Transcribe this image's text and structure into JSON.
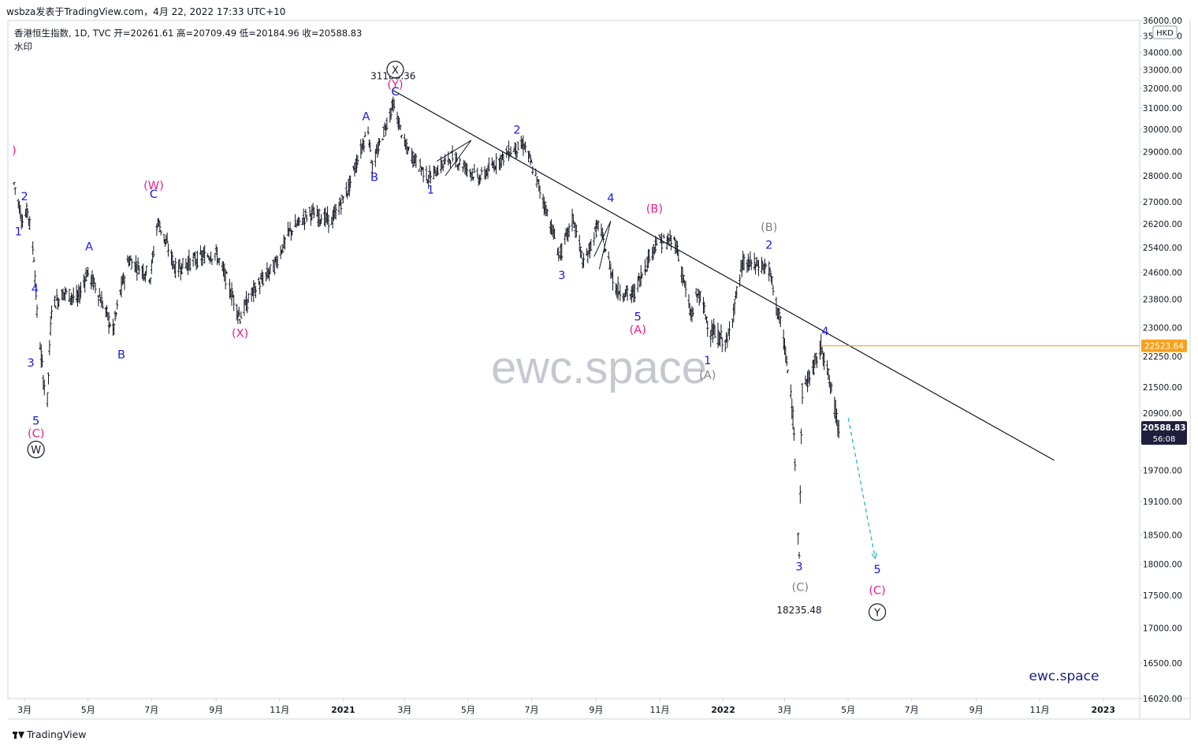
{
  "header": {
    "published": "wsbza发表于TradingView.com，4月 22, 2022 17:33 UTC+10",
    "legend": "香港恒生指数, 1D, TVC  开=20261.61  高=20709.49  低=20184.96  收=20588.83",
    "watermark_label": "水印",
    "currency": "HKD"
  },
  "footer": {
    "brand": "TradingView"
  },
  "chart_data": {
    "type": "candlestick",
    "symbol": "香港恒生指数",
    "interval": "1D",
    "ohlc": {
      "open": 20261.61,
      "high": 20709.49,
      "low": 20184.96,
      "close": 20588.83
    },
    "price_axis": {
      "ticks": [
        "16020.00",
        "16500.00",
        "17000.00",
        "17500.00",
        "18000.00",
        "18500.00",
        "19100.00",
        "19700.00",
        "20300.00",
        "20900.00",
        "21500.00",
        "22250.00",
        "23000.00",
        "23800.00",
        "24600.00",
        "25400.00",
        "26200.00",
        "27000.00",
        "28000.00",
        "29000.00",
        "30000.00",
        "31000.00",
        "32000.00",
        "33000.00",
        "34000.00",
        "35000.00",
        "36000.00"
      ]
    },
    "time_axis": [
      "3月",
      "5月",
      "7月",
      "9月",
      "11月",
      "2021",
      "3月",
      "5月",
      "7月",
      "9月",
      "11月",
      "2022",
      "3月",
      "5月",
      "7月",
      "9月",
      "11月",
      "2023"
    ],
    "price_series": [
      [
        "2020-02-20",
        27700
      ],
      [
        "2020-02-28",
        26300
      ],
      [
        "2020-03-04",
        26700
      ],
      [
        "2020-03-10",
        25100
      ],
      [
        "2020-03-13",
        23400
      ],
      [
        "2020-03-19",
        21700
      ],
      [
        "2020-03-23",
        21200
      ],
      [
        "2020-03-27",
        23600
      ],
      [
        "2020-04-08",
        24000
      ],
      [
        "2020-04-21",
        23800
      ],
      [
        "2020-04-30",
        24600
      ],
      [
        "2020-05-08",
        24200
      ],
      [
        "2020-05-25",
        22900
      ],
      [
        "2020-06-01",
        24000
      ],
      [
        "2020-06-09",
        25000
      ],
      [
        "2020-06-30",
        24500
      ],
      [
        "2020-07-07",
        26300
      ],
      [
        "2020-07-24",
        24700
      ],
      [
        "2020-08-05",
        24900
      ],
      [
        "2020-08-20",
        25100
      ],
      [
        "2020-09-01",
        25200
      ],
      [
        "2020-09-24",
        23300
      ],
      [
        "2020-10-06",
        24000
      ],
      [
        "2020-10-27",
        24800
      ],
      [
        "2020-11-10",
        25900
      ],
      [
        "2020-11-30",
        26600
      ],
      [
        "2020-12-21",
        26300
      ],
      [
        "2021-01-06",
        27500
      ],
      [
        "2021-01-25",
        30000
      ],
      [
        "2021-01-29",
        28300
      ],
      [
        "2021-02-18",
        31183.36
      ],
      [
        "2021-03-02",
        29200
      ],
      [
        "2021-03-24",
        27900
      ],
      [
        "2021-04-15",
        28800
      ],
      [
        "2021-05-12",
        27900
      ],
      [
        "2021-06-09",
        29000
      ],
      [
        "2021-06-24",
        29300
      ],
      [
        "2021-07-28",
        25100
      ],
      [
        "2021-08-10",
        26400
      ],
      [
        "2021-08-20",
        24800
      ],
      [
        "2021-09-03",
        26200
      ],
      [
        "2021-09-20",
        24100
      ],
      [
        "2021-10-06",
        23900
      ],
      [
        "2021-10-29",
        25600
      ],
      [
        "2021-11-16",
        25600
      ],
      [
        "2021-12-01",
        23300
      ],
      [
        "2021-12-08",
        24000
      ],
      [
        "2021-12-20",
        22900
      ],
      [
        "2022-01-05",
        22600
      ],
      [
        "2022-01-20",
        24900
      ],
      [
        "2022-02-09",
        24800
      ],
      [
        "2022-02-14",
        24700
      ],
      [
        "2022-03-01",
        22500
      ],
      [
        "2022-03-09",
        20800
      ],
      [
        "2022-03-15",
        18235.48
      ],
      [
        "2022-03-18",
        21400
      ],
      [
        "2022-03-29",
        22000
      ],
      [
        "2022-04-06",
        22523.64
      ],
      [
        "2022-04-14",
        21500
      ],
      [
        "2022-04-22",
        20588.83
      ]
    ],
    "projection": {
      "from": [
        "2022-04-22",
        20588.83
      ],
      "to": [
        "2022-05-27",
        18100
      ]
    },
    "trendline": {
      "from": [
        "2021-02-18",
        31900
      ],
      "to": [
        "2022-11-15",
        19900
      ]
    },
    "triangles": [
      {
        "points": [
          [
            "2021-04-01",
            28600
          ],
          [
            "2021-05-04",
            29500
          ],
          [
            "2021-04-09",
            28000
          ]
        ]
      },
      {
        "points": [
          [
            "2021-08-30",
            25100
          ],
          [
            "2021-09-15",
            26300
          ],
          [
            "2021-09-04",
            24700
          ]
        ]
      }
    ],
    "horizontal_line": {
      "price": 22523.64,
      "from": "2022-04-06",
      "label": "22523.64",
      "color": "#f7a21b"
    },
    "last_price": {
      "label": "20588.83",
      "countdown": "56:08",
      "color": "#1f1f3d"
    },
    "price_labels": [
      {
        "text": "31183.36",
        "t": "2021-02-18",
        "p": 32480
      },
      {
        "text": "18235.48",
        "t": "2022-03-15",
        "p": 17220
      }
    ],
    "wave_labels": [
      {
        "text": ")",
        "t": "2020-02-20",
        "p": 28900,
        "color": "#e91e8c"
      },
      {
        "text": "2",
        "t": "2020-03-01",
        "p": 27050,
        "color": "#1a1adb"
      },
      {
        "text": "1",
        "t": "2020-02-24",
        "p": 25800,
        "color": "#1a1adb"
      },
      {
        "text": "4",
        "t": "2020-03-11",
        "p": 24000,
        "color": "#1a1adb"
      },
      {
        "text": "3",
        "t": "2020-03-07",
        "p": 22000,
        "color": "#1a1adb"
      },
      {
        "text": "5",
        "t": "2020-03-12",
        "p": 20650,
        "color": "#1a1adb"
      },
      {
        "text": "(C)",
        "t": "2020-03-12",
        "p": 20380,
        "color": "#e91e8c"
      },
      {
        "text": "W",
        "t": "2020-03-12",
        "p": 20040,
        "color": "#131722",
        "circled": true
      },
      {
        "text": "A",
        "t": "2020-05-02",
        "p": 25300,
        "color": "#1a1adb"
      },
      {
        "text": "B",
        "t": "2020-06-02",
        "p": 22200,
        "color": "#1a1adb"
      },
      {
        "text": "(W)",
        "t": "2020-07-03",
        "p": 27480,
        "color": "#e91e8c"
      },
      {
        "text": "C",
        "t": "2020-07-03",
        "p": 27150,
        "color": "#1a1adb"
      },
      {
        "text": "(X)",
        "t": "2020-09-24",
        "p": 22750,
        "color": "#e91e8c"
      },
      {
        "text": "X",
        "t": "2021-02-20",
        "p": 32800,
        "color": "#131722",
        "circled": true
      },
      {
        "text": "(Y)",
        "t": "2021-02-20",
        "p": 32000,
        "color": "#e91e8c"
      },
      {
        "text": "C",
        "t": "2021-02-20",
        "p": 31650,
        "color": "#1a1adb"
      },
      {
        "text": "A",
        "t": "2021-01-23",
        "p": 30420,
        "color": "#1a1adb"
      },
      {
        "text": "B",
        "t": "2021-01-31",
        "p": 27800,
        "color": "#1a1adb"
      },
      {
        "text": "1",
        "t": "2021-03-26",
        "p": 27300,
        "color": "#1a1adb"
      },
      {
        "text": "2",
        "t": "2021-06-17",
        "p": 29800,
        "color": "#1a1adb"
      },
      {
        "text": "3",
        "t": "2021-07-30",
        "p": 24400,
        "color": "#1a1adb"
      },
      {
        "text": "4",
        "t": "2021-09-15",
        "p": 27000,
        "color": "#1a1adb"
      },
      {
        "text": "(B)",
        "t": "2021-10-27",
        "p": 26600,
        "color": "#e91e8c"
      },
      {
        "text": "5",
        "t": "2021-10-11",
        "p": 23200,
        "color": "#1a1adb"
      },
      {
        "text": "(A)",
        "t": "2021-10-11",
        "p": 22850,
        "color": "#e91e8c"
      },
      {
        "text": "1",
        "t": "2021-12-17",
        "p": 22050,
        "color": "#1a1adb"
      },
      {
        "text": "(A)",
        "t": "2021-12-17",
        "p": 21700,
        "color": "#808080"
      },
      {
        "text": "(B)",
        "t": "2022-02-14",
        "p": 25950,
        "color": "#808080"
      },
      {
        "text": "2",
        "t": "2022-02-14",
        "p": 25350,
        "color": "#1a1adb"
      },
      {
        "text": "4",
        "t": "2022-04-09",
        "p": 22800,
        "color": "#1a1adb"
      },
      {
        "text": "3",
        "t": "2022-03-15",
        "p": 17900,
        "color": "#1a1adb"
      },
      {
        "text": "(C)",
        "t": "2022-03-16",
        "p": 17570,
        "color": "#808080"
      },
      {
        "text": "5",
        "t": "2022-05-29",
        "p": 17850,
        "color": "#1a1adb"
      },
      {
        "text": "(C)",
        "t": "2022-05-29",
        "p": 17520,
        "color": "#e91e8c"
      },
      {
        "text": "Y",
        "t": "2022-05-29",
        "p": 17180,
        "color": "#131722",
        "circled": true
      }
    ],
    "watermark": "ewc.space",
    "brand_label": "ewc.space"
  },
  "colors": {
    "bars": "#131722",
    "grid_axis": "#d1d4dc",
    "impulse": "#1a1adb",
    "corrective": "#e91e8c",
    "minor": "#808080",
    "projection": "#26b8c8",
    "brand": "#1a237e"
  }
}
